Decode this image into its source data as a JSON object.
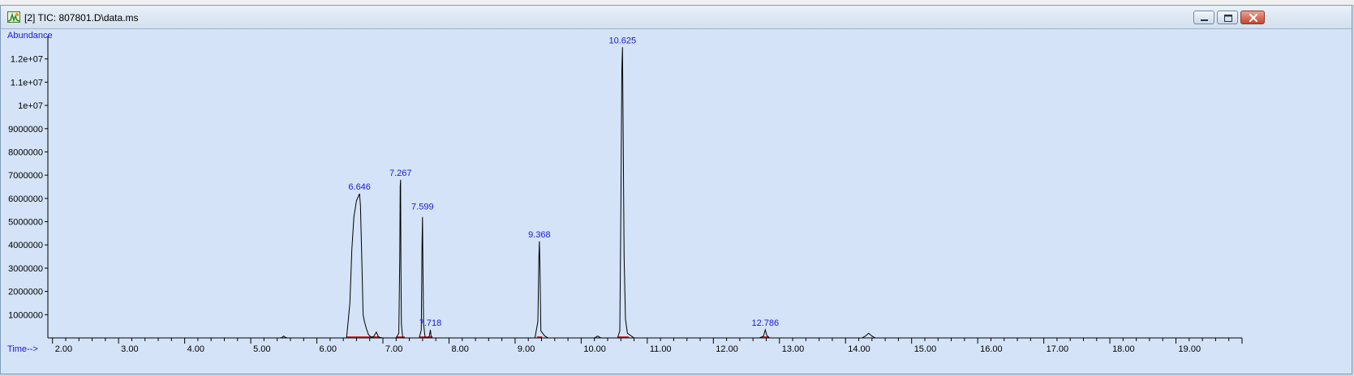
{
  "window": {
    "title": "[2] TIC: 807801.D\\data.ms",
    "controls": [
      "minimize",
      "restore",
      "close"
    ]
  },
  "chart_data": {
    "type": "line",
    "xlabel": "Time-->",
    "ylabel": "Abundance",
    "xlim": [
      1.93,
      20.0
    ],
    "ylim": [
      0,
      13000000
    ],
    "x_ticks": [
      2.0,
      3.0,
      4.0,
      5.0,
      6.0,
      7.0,
      8.0,
      9.0,
      10.0,
      11.0,
      12.0,
      13.0,
      14.0,
      15.0,
      16.0,
      17.0,
      18.0,
      19.0
    ],
    "x_tick_labels": [
      "2.00",
      "3.00",
      "4.00",
      "5.00",
      "6.00",
      "7.00",
      "8.00",
      "9.00",
      "10.00",
      "11.00",
      "12.00",
      "13.00",
      "14.00",
      "15.00",
      "16.00",
      "17.00",
      "18.00",
      "19.00"
    ],
    "y_ticks": [
      1000000,
      2000000,
      3000000,
      4000000,
      5000000,
      6000000,
      7000000,
      8000000,
      9000000,
      10000000,
      11000000,
      12000000
    ],
    "y_tick_labels": [
      "1000000",
      "2000000",
      "3000000",
      "4000000",
      "5000000",
      "6000000",
      "7000000",
      "8000000",
      "9000000",
      "1e+07",
      "1.1e+07",
      "1.2e+07"
    ],
    "peak_labels": [
      {
        "label": "6.646",
        "x": 6.646,
        "y": 6200000
      },
      {
        "label": "7.267",
        "x": 7.267,
        "y": 6800000
      },
      {
        "label": "7.599",
        "x": 7.599,
        "y": 5350000
      },
      {
        "label": "7.718",
        "x": 7.718,
        "y": 350000
      },
      {
        "label": "9.368",
        "x": 9.368,
        "y": 4150000
      },
      {
        "label": "10.625",
        "x": 10.625,
        "y": 12500000
      },
      {
        "label": "12.786",
        "x": 12.786,
        "y": 350000
      }
    ],
    "series": [
      {
        "x": [
          1.95,
          5.45,
          5.48,
          5.5,
          5.52,
          5.55,
          6.45,
          6.5,
          6.53,
          6.56,
          6.6,
          6.63,
          6.646,
          6.66,
          6.68,
          6.7,
          6.72,
          6.75,
          6.78,
          6.82,
          6.86,
          6.9,
          6.93,
          6.95,
          7.0,
          7.1,
          7.2,
          7.24,
          7.255,
          7.262,
          7.267,
          7.272,
          7.28,
          7.3,
          7.55,
          7.58,
          7.592,
          7.599,
          7.605,
          7.615,
          7.64,
          7.69,
          7.705,
          7.718,
          7.728,
          7.745,
          7.9,
          9.3,
          9.345,
          9.36,
          9.368,
          9.376,
          9.39,
          9.45,
          9.5,
          10.2,
          10.25,
          10.3,
          10.55,
          10.585,
          10.6,
          10.615,
          10.625,
          10.635,
          10.65,
          10.67,
          10.7,
          10.8,
          12.7,
          12.76,
          12.786,
          12.81,
          12.85,
          14.25,
          14.3,
          14.35,
          14.4,
          14.45,
          19.95
        ],
        "y": [
          0,
          0,
          30000,
          80000,
          30000,
          0,
          0,
          1500000,
          3800000,
          5200000,
          5900000,
          6100000,
          6200000,
          5700000,
          3500000,
          1000000,
          700000,
          400000,
          150000,
          30000,
          60000,
          250000,
          60000,
          20000,
          0,
          0,
          0,
          200000,
          3500000,
          6500000,
          6800000,
          3000000,
          600000,
          0,
          0,
          350000,
          4000000,
          5200000,
          3200000,
          600000,
          0,
          0,
          100000,
          350000,
          100000,
          0,
          0,
          0,
          700000,
          3500000,
          4150000,
          3000000,
          300000,
          80000,
          0,
          0,
          80000,
          0,
          0,
          300000,
          5500000,
          11500000,
          12500000,
          9000000,
          3500000,
          800000,
          200000,
          0,
          0,
          80000,
          350000,
          100000,
          0,
          0,
          80000,
          200000,
          80000,
          0,
          0
        ]
      }
    ],
    "integration_markers": [
      [
        6.45,
        6.95
      ],
      [
        7.2,
        7.33
      ],
      [
        7.55,
        7.75
      ],
      [
        9.33,
        9.41
      ],
      [
        10.55,
        10.72
      ],
      [
        12.74,
        12.84
      ]
    ],
    "colors": {
      "trace": "#000000",
      "labels": "#1a1ad6",
      "axis": "#000000",
      "background": "#d4e3f7",
      "baseline_markers": "#cc0000"
    }
  }
}
